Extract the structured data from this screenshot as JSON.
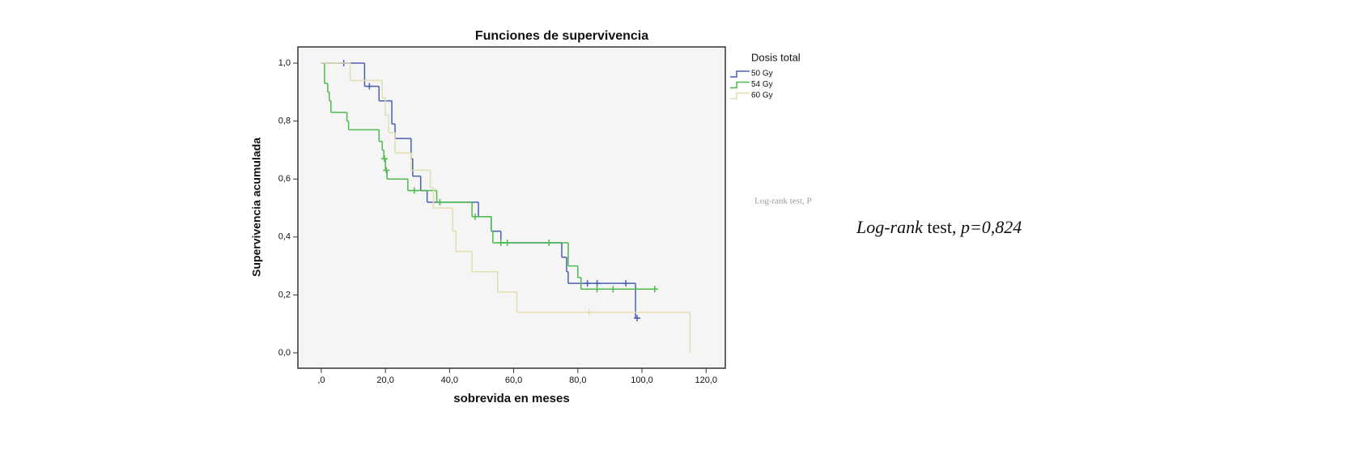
{
  "chart_data": {
    "type": "step",
    "title": "Funciones de supervivencia",
    "xlabel": "sobrevida en meses",
    "ylabel": "Supervivencia acumulada",
    "legend_title": "Dosis total",
    "legend_position": "right",
    "xlim": [
      -7.3,
      126
    ],
    "ylim": [
      -0.053,
      1.056
    ],
    "xticks": [
      {
        "value": 0,
        "label": ",0"
      },
      {
        "value": 20,
        "label": "20,0"
      },
      {
        "value": 40,
        "label": "40,0"
      },
      {
        "value": 60,
        "label": "60,0"
      },
      {
        "value": 80,
        "label": "80,0"
      },
      {
        "value": 100,
        "label": "100,0"
      },
      {
        "value": 120,
        "label": "120,0"
      }
    ],
    "yticks": [
      {
        "value": 0,
        "label": "0,0"
      },
      {
        "value": 0.2,
        "label": "0,2"
      },
      {
        "value": 0.4,
        "label": "0,4"
      },
      {
        "value": 0.6,
        "label": "0,6"
      },
      {
        "value": 0.8,
        "label": "0,8"
      },
      {
        "value": 1,
        "label": "1,0"
      }
    ],
    "series": [
      {
        "name": "50 Gy",
        "color": "#4a5fb0",
        "x": [
          0,
          13.5,
          18,
          22,
          23,
          28,
          28.5,
          31,
          33,
          49,
          53,
          56,
          75,
          76.5,
          77,
          98,
          99
        ],
        "values": [
          1,
          0.92,
          0.87,
          0.79,
          0.74,
          0.67,
          0.61,
          0.56,
          0.52,
          0.47,
          0.42,
          0.38,
          0.33,
          0.28,
          0.24,
          0.12,
          0.12
        ],
        "censored": [
          7,
          15,
          83,
          86,
          95,
          98.5
        ]
      },
      {
        "name": "54 Gy",
        "color": "#4cbb4c",
        "x": [
          0,
          1,
          2,
          2.5,
          3,
          8,
          8.5,
          18,
          19,
          19.5,
          20,
          20.5,
          27,
          36,
          47,
          53,
          53.5,
          77,
          80,
          81,
          104
        ],
        "values": [
          1,
          0.93,
          0.9,
          0.87,
          0.83,
          0.8,
          0.77,
          0.73,
          0.7,
          0.67,
          0.63,
          0.6,
          0.56,
          0.52,
          0.47,
          0.42,
          0.38,
          0.3,
          0.26,
          0.22,
          0.22
        ],
        "censored": [
          19.7,
          20.3,
          29,
          37,
          48,
          56,
          58,
          71,
          86,
          91,
          104
        ]
      },
      {
        "name": "60 Gy",
        "color": "#e3deb0",
        "x": [
          0,
          9,
          19,
          20,
          21,
          23,
          28,
          34,
          35,
          41,
          42,
          47,
          55,
          61,
          115
        ],
        "values": [
          1,
          0.94,
          0.88,
          0.82,
          0.76,
          0.69,
          0.63,
          0.57,
          0.5,
          0.42,
          0.35,
          0.28,
          0.21,
          0.14,
          0
        ],
        "censored": [
          83.5
        ]
      }
    ],
    "annotations": [
      "Log-rank test, P"
    ],
    "note_parts": [
      "Log-rank",
      " test, ",
      "p=0,824"
    ]
  }
}
